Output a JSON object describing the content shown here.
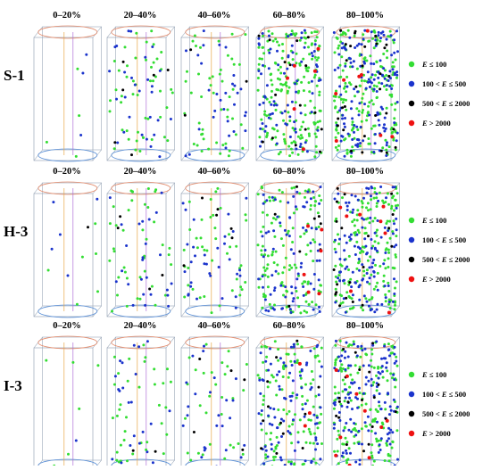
{
  "rows": [
    {
      "label": "S-1",
      "columns": [
        {
          "title": "0–20%",
          "counts": {
            "green": 4,
            "blue": 3,
            "black": 0,
            "red": 0
          }
        },
        {
          "title": "20–40%",
          "counts": {
            "green": 48,
            "blue": 28,
            "black": 6,
            "red": 0
          }
        },
        {
          "title": "40–60%",
          "counts": {
            "green": 48,
            "blue": 30,
            "black": 3,
            "red": 0
          }
        },
        {
          "title": "60–80%",
          "counts": {
            "green": 190,
            "blue": 80,
            "black": 16,
            "red": 6
          }
        },
        {
          "title": "80–100%",
          "counts": {
            "green": 200,
            "blue": 140,
            "black": 30,
            "red": 8
          }
        }
      ]
    },
    {
      "label": "H-3",
      "columns": [
        {
          "title": "0–20%",
          "counts": {
            "green": 6,
            "blue": 5,
            "black": 1,
            "red": 0
          }
        },
        {
          "title": "20–40%",
          "counts": {
            "green": 40,
            "blue": 25,
            "black": 4,
            "red": 0
          }
        },
        {
          "title": "40–60%",
          "counts": {
            "green": 42,
            "blue": 32,
            "black": 6,
            "red": 0
          }
        },
        {
          "title": "60–80%",
          "counts": {
            "green": 130,
            "blue": 80,
            "black": 8,
            "red": 6
          }
        },
        {
          "title": "80–100%",
          "counts": {
            "green": 170,
            "blue": 120,
            "black": 20,
            "red": 8
          }
        }
      ]
    },
    {
      "label": "I-3",
      "columns": [
        {
          "title": "0–20%",
          "counts": {
            "green": 6,
            "blue": 1,
            "black": 0,
            "red": 0
          }
        },
        {
          "title": "20–40%",
          "counts": {
            "green": 36,
            "blue": 22,
            "black": 2,
            "red": 0
          }
        },
        {
          "title": "40–60%",
          "counts": {
            "green": 30,
            "blue": 25,
            "black": 5,
            "red": 0
          }
        },
        {
          "title": "60–80%",
          "counts": {
            "green": 120,
            "blue": 90,
            "black": 12,
            "red": 3
          }
        },
        {
          "title": "80–100%",
          "counts": {
            "green": 160,
            "blue": 130,
            "black": 20,
            "red": 10
          }
        }
      ]
    }
  ],
  "legend": [
    {
      "key": "green",
      "symbol": "E",
      "text": " ≤ 100",
      "color": "#33dd33"
    },
    {
      "key": "blue",
      "symbol": "E",
      "text": " ≤ 500",
      "prefix": "100 < ",
      "color": "#1a33cc"
    },
    {
      "key": "black",
      "symbol": "E",
      "text": " ≤ 2000",
      "prefix": "500 < ",
      "color": "#000000"
    },
    {
      "key": "red",
      "symbol": "E",
      "text": " > 2000",
      "color": "#ee1111"
    }
  ],
  "colors": {
    "green": "#33dd33",
    "blue": "#1a33cc",
    "black": "#000000",
    "red": "#ee1111",
    "box_edge": "#9aa7b8",
    "top_ellipse": "#e38a6a",
    "bottom_ellipse": "#5a8fd6",
    "axis_orange": "#e8a848",
    "axis_purple": "#b070d8"
  }
}
